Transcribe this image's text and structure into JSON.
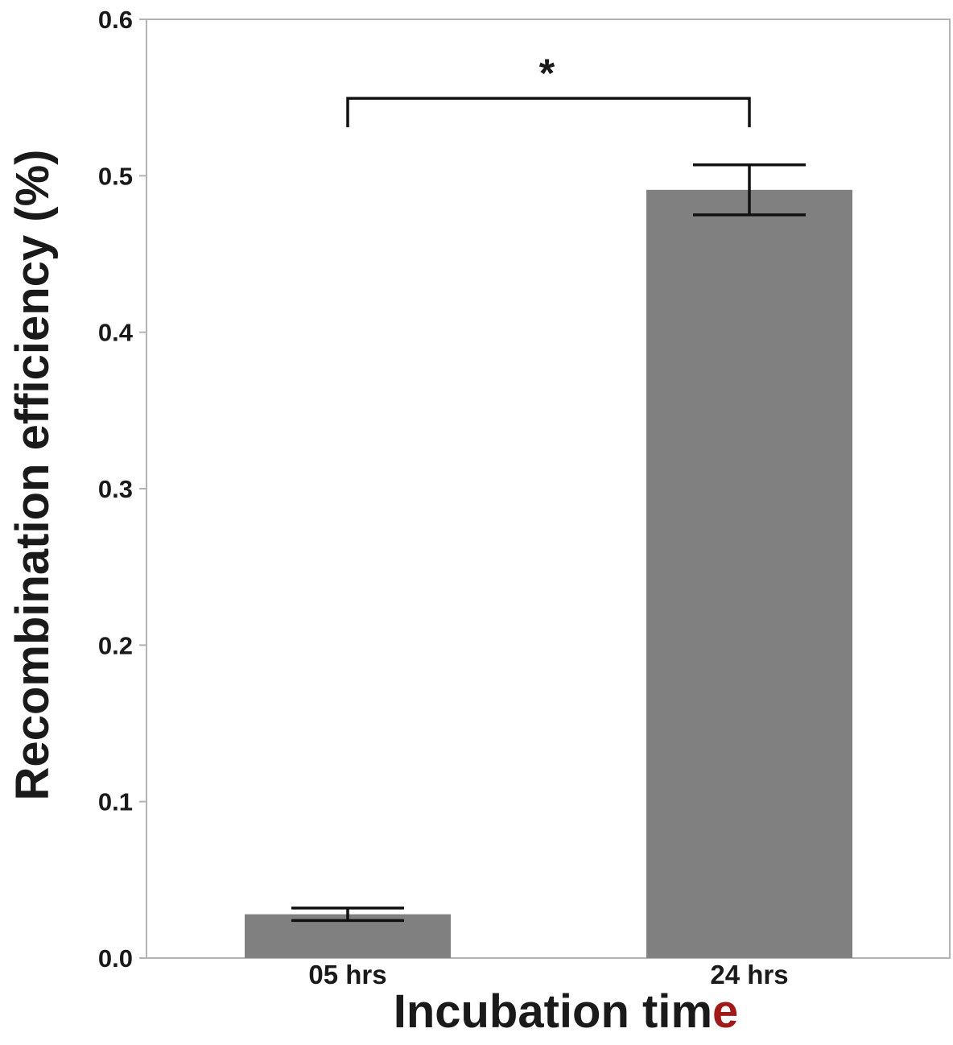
{
  "chart_data": {
    "type": "bar",
    "categories": [
      "05 hrs",
      "24 hrs"
    ],
    "values": [
      0.028,
      0.491
    ],
    "error": [
      0.004,
      0.016
    ],
    "ylim": [
      0,
      0.6
    ],
    "yticks": [
      "0.0",
      "0.1",
      "0.2",
      "0.3",
      "0.4",
      "0.5",
      "0.6"
    ],
    "xlabel": "Incubation time",
    "ylabel": "Recombination efficiency (%)",
    "grid": false,
    "legend": "none",
    "significance": {
      "label": "*",
      "between": [
        "05 hrs",
        "24 hrs"
      ],
      "level": 0.55
    },
    "colors": {
      "bar": "#808080",
      "axis": "#b3b3b3",
      "errorbar": "#111111",
      "xlabel_last_char": "#a01a1a"
    }
  }
}
